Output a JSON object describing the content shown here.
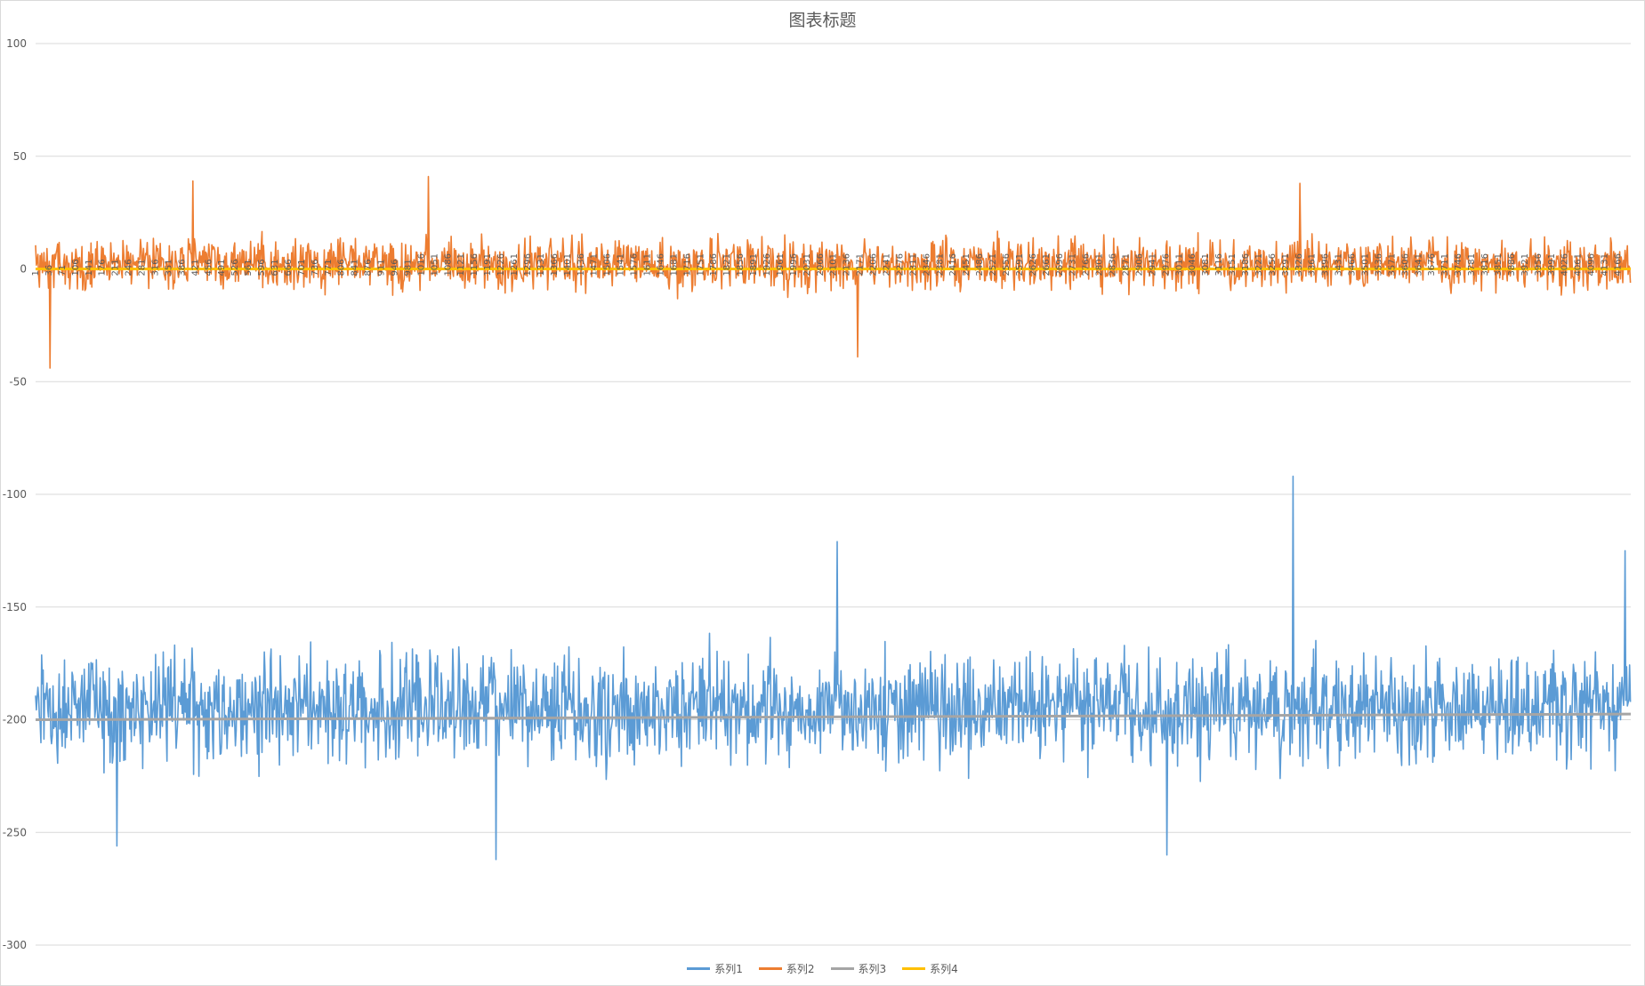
{
  "chart_data": {
    "type": "line",
    "title": "图表标题",
    "xlabel": "",
    "ylabel": "",
    "ylim": [
      -300,
      100
    ],
    "yticks": [
      100,
      50,
      0,
      -50,
      -100,
      -150,
      -200,
      -250,
      -300
    ],
    "ytick_labels": [
      "100",
      "50",
      "0",
      "-50",
      "-100",
      "-150",
      "-200",
      "-250",
      "-300"
    ],
    "x_count": 4200,
    "xtick_labels": [
      "1",
      "36",
      "71",
      "106",
      "141",
      "176",
      "211",
      "246",
      "281",
      "316",
      "351",
      "386",
      "421",
      "456",
      "491",
      "526",
      "561",
      "596",
      "631",
      "666",
      "701",
      "736",
      "771",
      "806",
      "841",
      "876",
      "911",
      "946",
      "981",
      "1016",
      "1051",
      "1086",
      "1121",
      "1156",
      "1191",
      "1226",
      "1261",
      "1296",
      "1331",
      "1366",
      "1401",
      "1436",
      "1471",
      "1506",
      "1541",
      "1576",
      "1611",
      "1646",
      "1681",
      "1716",
      "1751",
      "1786",
      "1821",
      "1856",
      "1891",
      "1926",
      "1961",
      "1996",
      "2031",
      "2066",
      "2101",
      "2136",
      "2171",
      "2206",
      "2241",
      "2276",
      "2311",
      "2346",
      "2381",
      "2416",
      "2451",
      "2486",
      "2521",
      "2556",
      "2591",
      "2626",
      "2661",
      "2696",
      "2731",
      "2766",
      "2801",
      "2836",
      "2871",
      "2906",
      "2941",
      "2976",
      "3011",
      "3046",
      "3081",
      "3116",
      "3151",
      "3186",
      "3221",
      "3256",
      "3291",
      "3326",
      "3361",
      "3396",
      "3431",
      "3466",
      "3501",
      "3536",
      "3571",
      "3606",
      "3641",
      "3676",
      "3711",
      "3746",
      "3781",
      "3816",
      "3851",
      "3886",
      "3921",
      "3956",
      "3991",
      "4026",
      "4061",
      "4096",
      "4131",
      "4166"
    ],
    "grid": true,
    "legend_position": "bottom",
    "series": [
      {
        "name": "系列1",
        "color": "#5b9bd5",
        "baseline": -195,
        "spread": 22,
        "min": -262,
        "max": -92,
        "spikes": [
          {
            "x": 216,
            "y": -256
          },
          {
            "x": 1213,
            "y": -262
          },
          {
            "x": 2111,
            "y": -121
          },
          {
            "x": 3312,
            "y": -92
          },
          {
            "x": 2979,
            "y": -260
          },
          {
            "x": 4186,
            "y": -125
          }
        ]
      },
      {
        "name": "系列2",
        "color": "#ed7d31",
        "baseline": 2,
        "spread": 10,
        "min": -44,
        "max": 41,
        "spikes": [
          {
            "x": 40,
            "y": -44
          },
          {
            "x": 1035,
            "y": 41
          },
          {
            "x": 3330,
            "y": 38
          },
          {
            "x": 2165,
            "y": -39
          },
          {
            "x": 416,
            "y": 39
          }
        ]
      },
      {
        "name": "系列3",
        "color": "#a5a5a5",
        "start": -200,
        "end": -197.5
      },
      {
        "name": "系列4",
        "color": "#ffc000",
        "start": 0,
        "end": 0
      }
    ]
  }
}
